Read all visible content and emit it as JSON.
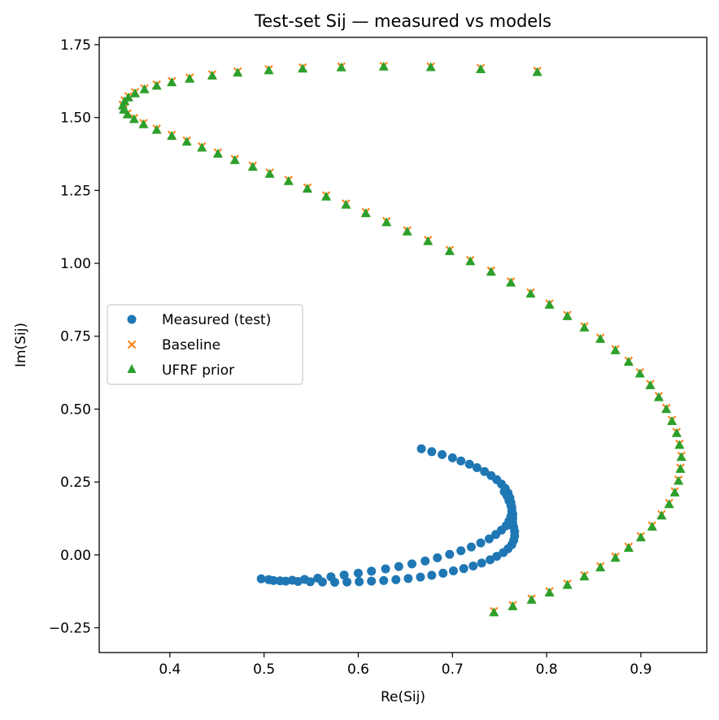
{
  "chart_data": {
    "type": "scatter",
    "title": "Test-set Sij — measured vs models",
    "xlabel": "Re(Sij)",
    "ylabel": "Im(Sij)",
    "xlim": [
      0.325,
      0.97
    ],
    "ylim": [
      -0.335,
      1.775
    ],
    "xticks": [
      0.4,
      0.5,
      0.6,
      0.7,
      0.8,
      0.9
    ],
    "xtick_labels": [
      "0.4",
      "0.5",
      "0.6",
      "0.7",
      "0.8",
      "0.9"
    ],
    "yticks": [
      -0.25,
      0.0,
      0.25,
      0.5,
      0.75,
      1.0,
      1.25,
      1.5,
      1.75
    ],
    "ytick_labels": [
      "−0.25",
      "0.00",
      "0.25",
      "0.50",
      "0.75",
      "1.00",
      "1.25",
      "1.50",
      "1.75"
    ],
    "grid": false,
    "legend_position": "center-left",
    "series": [
      {
        "name": "Measured (test)",
        "marker": "circle",
        "color": "#1f77b4",
        "points": [
          [
            0.667,
            0.364
          ],
          [
            0.678,
            0.354
          ],
          [
            0.689,
            0.344
          ],
          [
            0.7,
            0.333
          ],
          [
            0.709,
            0.322
          ],
          [
            0.718,
            0.311
          ],
          [
            0.726,
            0.299
          ],
          [
            0.734,
            0.286
          ],
          [
            0.741,
            0.272
          ],
          [
            0.747,
            0.258
          ],
          [
            0.752,
            0.243
          ],
          [
            0.756,
            0.228
          ],
          [
            0.759,
            0.212
          ],
          [
            0.761,
            0.196
          ],
          [
            0.762,
            0.18
          ],
          [
            0.763,
            0.164
          ],
          [
            0.763,
            0.148
          ],
          [
            0.762,
            0.132
          ],
          [
            0.76,
            0.116
          ],
          [
            0.757,
            0.1
          ],
          [
            0.752,
            0.085
          ],
          [
            0.746,
            0.07
          ],
          [
            0.739,
            0.055
          ],
          [
            0.73,
            0.041
          ],
          [
            0.72,
            0.027
          ],
          [
            0.709,
            0.014
          ],
          [
            0.697,
            0.002
          ],
          [
            0.684,
            -0.01
          ],
          [
            0.671,
            -0.021
          ],
          [
            0.657,
            -0.031
          ],
          [
            0.643,
            -0.04
          ],
          [
            0.629,
            -0.048
          ],
          [
            0.614,
            -0.056
          ],
          [
            0.6,
            -0.063
          ],
          [
            0.585,
            -0.069
          ],
          [
            0.571,
            -0.075
          ],
          [
            0.557,
            -0.08
          ],
          [
            0.543,
            -0.084
          ],
          [
            0.53,
            -0.087
          ],
          [
            0.517,
            -0.089
          ],
          [
            0.505,
            -0.085
          ],
          [
            0.497,
            -0.082
          ],
          [
            0.51,
            -0.088
          ],
          [
            0.523,
            -0.09
          ],
          [
            0.536,
            -0.091
          ],
          [
            0.549,
            -0.092
          ],
          [
            0.562,
            -0.093
          ],
          [
            0.575,
            -0.094
          ],
          [
            0.588,
            -0.093
          ],
          [
            0.601,
            -0.092
          ],
          [
            0.614,
            -0.09
          ],
          [
            0.627,
            -0.088
          ],
          [
            0.64,
            -0.085
          ],
          [
            0.653,
            -0.081
          ],
          [
            0.666,
            -0.076
          ],
          [
            0.678,
            -0.07
          ],
          [
            0.69,
            -0.063
          ],
          [
            0.701,
            -0.055
          ],
          [
            0.712,
            -0.047
          ],
          [
            0.722,
            -0.038
          ],
          [
            0.731,
            -0.028
          ],
          [
            0.74,
            -0.017
          ],
          [
            0.747,
            -0.005
          ],
          [
            0.754,
            0.008
          ],
          [
            0.759,
            0.021
          ],
          [
            0.763,
            0.035
          ],
          [
            0.765,
            0.05
          ],
          [
            0.766,
            0.065
          ],
          [
            0.766,
            0.08
          ],
          [
            0.765,
            0.095
          ],
          [
            0.764,
            0.11
          ],
          [
            0.764,
            0.125
          ],
          [
            0.764,
            0.14
          ],
          [
            0.763,
            0.155
          ],
          [
            0.762,
            0.17
          ],
          [
            0.76,
            0.186
          ],
          [
            0.758,
            0.202
          ],
          [
            0.755,
            0.217
          ]
        ]
      },
      {
        "name": "Baseline",
        "marker": "x",
        "color": "#ff7f0e",
        "points": [
          [
            0.79,
            1.66
          ],
          [
            0.73,
            1.67
          ],
          [
            0.677,
            1.675
          ],
          [
            0.627,
            1.677
          ],
          [
            0.582,
            1.675
          ],
          [
            0.541,
            1.672
          ],
          [
            0.505,
            1.666
          ],
          [
            0.472,
            1.658
          ],
          [
            0.445,
            1.648
          ],
          [
            0.421,
            1.637
          ],
          [
            0.402,
            1.625
          ],
          [
            0.386,
            1.613
          ],
          [
            0.373,
            1.6
          ],
          [
            0.363,
            1.587
          ],
          [
            0.356,
            1.573
          ],
          [
            0.352,
            1.559
          ],
          [
            0.35,
            1.544
          ],
          [
            0.351,
            1.53
          ],
          [
            0.355,
            1.514
          ],
          [
            0.362,
            1.498
          ],
          [
            0.372,
            1.481
          ],
          [
            0.386,
            1.462
          ],
          [
            0.402,
            1.441
          ],
          [
            0.418,
            1.421
          ],
          [
            0.434,
            1.401
          ],
          [
            0.451,
            1.38
          ],
          [
            0.469,
            1.358
          ],
          [
            0.488,
            1.335
          ],
          [
            0.506,
            1.311
          ],
          [
            0.526,
            1.286
          ],
          [
            0.546,
            1.26
          ],
          [
            0.566,
            1.233
          ],
          [
            0.587,
            1.205
          ],
          [
            0.608,
            1.176
          ],
          [
            0.63,
            1.145
          ],
          [
            0.652,
            1.113
          ],
          [
            0.674,
            1.08
          ],
          [
            0.697,
            1.046
          ],
          [
            0.719,
            1.011
          ],
          [
            0.741,
            0.975
          ],
          [
            0.762,
            0.938
          ],
          [
            0.783,
            0.9
          ],
          [
            0.803,
            0.862
          ],
          [
            0.822,
            0.823
          ],
          [
            0.84,
            0.784
          ],
          [
            0.857,
            0.745
          ],
          [
            0.873,
            0.706
          ],
          [
            0.887,
            0.666
          ],
          [
            0.899,
            0.626
          ],
          [
            0.91,
            0.586
          ],
          [
            0.919,
            0.545
          ],
          [
            0.927,
            0.504
          ],
          [
            0.933,
            0.463
          ],
          [
            0.938,
            0.422
          ],
          [
            0.941,
            0.381
          ],
          [
            0.943,
            0.34
          ],
          [
            0.942,
            0.299
          ],
          [
            0.94,
            0.258
          ],
          [
            0.936,
            0.218
          ],
          [
            0.93,
            0.178
          ],
          [
            0.922,
            0.139
          ],
          [
            0.912,
            0.101
          ],
          [
            0.9,
            0.064
          ],
          [
            0.887,
            0.028
          ],
          [
            0.873,
            -0.006
          ],
          [
            0.857,
            -0.039
          ],
          [
            0.84,
            -0.07
          ],
          [
            0.822,
            -0.099
          ],
          [
            0.803,
            -0.125
          ],
          [
            0.784,
            -0.15
          ],
          [
            0.764,
            -0.172
          ],
          [
            0.744,
            -0.193
          ]
        ]
      },
      {
        "name": "UFRF prior",
        "marker": "triangle",
        "color": "#2ca02c",
        "points": [
          [
            0.79,
            1.655
          ],
          [
            0.73,
            1.665
          ],
          [
            0.677,
            1.672
          ],
          [
            0.627,
            1.674
          ],
          [
            0.582,
            1.671
          ],
          [
            0.541,
            1.667
          ],
          [
            0.505,
            1.661
          ],
          [
            0.472,
            1.653
          ],
          [
            0.445,
            1.643
          ],
          [
            0.421,
            1.632
          ],
          [
            0.402,
            1.62
          ],
          [
            0.386,
            1.608
          ],
          [
            0.373,
            1.596
          ],
          [
            0.363,
            1.582
          ],
          [
            0.356,
            1.568
          ],
          [
            0.352,
            1.555
          ],
          [
            0.35,
            1.54
          ],
          [
            0.351,
            1.526
          ],
          [
            0.355,
            1.51
          ],
          [
            0.362,
            1.494
          ],
          [
            0.372,
            1.476
          ],
          [
            0.386,
            1.457
          ],
          [
            0.402,
            1.436
          ],
          [
            0.418,
            1.416
          ],
          [
            0.434,
            1.396
          ],
          [
            0.451,
            1.375
          ],
          [
            0.469,
            1.353
          ],
          [
            0.488,
            1.33
          ],
          [
            0.506,
            1.306
          ],
          [
            0.526,
            1.281
          ],
          [
            0.546,
            1.255
          ],
          [
            0.566,
            1.228
          ],
          [
            0.587,
            1.2
          ],
          [
            0.608,
            1.171
          ],
          [
            0.63,
            1.14
          ],
          [
            0.652,
            1.108
          ],
          [
            0.674,
            1.075
          ],
          [
            0.697,
            1.041
          ],
          [
            0.719,
            1.006
          ],
          [
            0.741,
            0.97
          ],
          [
            0.762,
            0.933
          ],
          [
            0.783,
            0.895
          ],
          [
            0.803,
            0.857
          ],
          [
            0.822,
            0.818
          ],
          [
            0.84,
            0.779
          ],
          [
            0.857,
            0.74
          ],
          [
            0.873,
            0.701
          ],
          [
            0.887,
            0.661
          ],
          [
            0.899,
            0.621
          ],
          [
            0.91,
            0.581
          ],
          [
            0.919,
            0.54
          ],
          [
            0.927,
            0.499
          ],
          [
            0.933,
            0.458
          ],
          [
            0.938,
            0.417
          ],
          [
            0.941,
            0.376
          ],
          [
            0.943,
            0.335
          ],
          [
            0.942,
            0.294
          ],
          [
            0.94,
            0.253
          ],
          [
            0.936,
            0.213
          ],
          [
            0.93,
            0.173
          ],
          [
            0.922,
            0.134
          ],
          [
            0.912,
            0.096
          ],
          [
            0.9,
            0.059
          ],
          [
            0.887,
            0.023
          ],
          [
            0.873,
            -0.011
          ],
          [
            0.857,
            -0.044
          ],
          [
            0.84,
            -0.075
          ],
          [
            0.822,
            -0.104
          ],
          [
            0.803,
            -0.13
          ],
          [
            0.784,
            -0.155
          ],
          [
            0.764,
            -0.177
          ],
          [
            0.744,
            -0.198
          ]
        ]
      }
    ]
  }
}
